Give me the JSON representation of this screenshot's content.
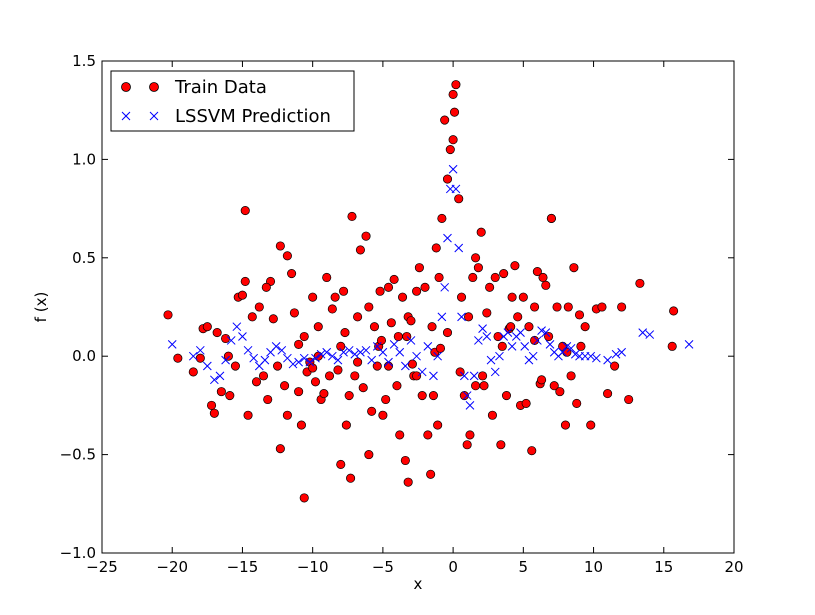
{
  "chart_data": {
    "type": "scatter",
    "title": "",
    "xlabel": "x",
    "ylabel": "f (x)",
    "xlim": [
      -25,
      20
    ],
    "ylim": [
      -1.0,
      1.5
    ],
    "grid": false,
    "legend_placement": "top-left",
    "x_ticks": [
      -25,
      -20,
      -15,
      -10,
      -5,
      0,
      5,
      10,
      15,
      20
    ],
    "x_tick_labels": [
      "−25",
      "−20",
      "−15",
      "−10",
      "−5",
      "0",
      "5",
      "10",
      "15",
      "20"
    ],
    "y_ticks": [
      -1.0,
      -0.5,
      0.0,
      0.5,
      1.0,
      1.5
    ],
    "y_tick_labels": [
      "−1.0",
      "−0.5",
      "0.0",
      "0.5",
      "1.0",
      "1.5"
    ],
    "series": [
      {
        "name": "Train Data",
        "marker": "circle",
        "color": "#ff0000",
        "edge_color": "#000000",
        "x": [
          -20.3,
          -19.6,
          -18.5,
          -18.0,
          -17.8,
          -17.5,
          -17.2,
          -17.0,
          -16.8,
          -16.5,
          -16.2,
          -15.9,
          -15.5,
          -15.3,
          -15.0,
          -14.8,
          -14.6,
          -14.3,
          -14.0,
          -13.8,
          -13.5,
          -13.2,
          -13.0,
          -12.8,
          -12.5,
          -12.3,
          -12.0,
          -11.8,
          -11.5,
          -11.3,
          -11.0,
          -10.8,
          -10.6,
          -10.4,
          -10.2,
          -10.0,
          -9.8,
          -9.6,
          -9.4,
          -9.2,
          -9.0,
          -8.8,
          -8.6,
          -8.4,
          -8.2,
          -8.0,
          -7.8,
          -7.6,
          -7.4,
          -7.2,
          -7.0,
          -6.8,
          -6.6,
          -6.4,
          -6.2,
          -6.0,
          -5.8,
          -5.6,
          -5.4,
          -5.2,
          -5.0,
          -4.8,
          -4.6,
          -4.4,
          -4.2,
          -4.0,
          -3.8,
          -3.6,
          -3.4,
          -3.2,
          -3.0,
          -2.8,
          -2.6,
          -2.4,
          -2.2,
          -2.0,
          -1.8,
          -1.6,
          -1.4,
          -1.2,
          -1.0,
          -0.8,
          -0.6,
          -0.4,
          -0.2,
          0.0,
          0.2,
          0.4,
          0.6,
          0.8,
          1.0,
          1.2,
          1.4,
          1.6,
          1.8,
          2.0,
          2.2,
          2.4,
          2.6,
          2.8,
          3.0,
          3.2,
          3.4,
          3.6,
          3.8,
          4.0,
          4.2,
          4.4,
          4.6,
          4.8,
          5.0,
          5.2,
          5.4,
          5.6,
          5.8,
          6.0,
          6.2,
          6.4,
          6.6,
          6.8,
          7.0,
          7.2,
          7.4,
          7.6,
          7.8,
          8.0,
          8.2,
          8.4,
          8.6,
          8.8,
          9.0,
          9.4,
          9.8,
          10.2,
          10.6,
          11.0,
          11.5,
          12.0,
          12.5,
          13.3,
          15.6,
          15.7,
          -14.8,
          -10.6,
          -3.2,
          -7.3,
          -6.0,
          -12.3,
          -11.8,
          0.0,
          0.1,
          7.0,
          -13.3,
          -1.1,
          -8.0,
          -3.3,
          -5.3,
          -9.6,
          -4.6,
          -2.6,
          -1.5,
          -0.4,
          0.5,
          1.1,
          2.1,
          3.5,
          5.8,
          8.1,
          -16.0,
          -11.0,
          -6.8,
          -3.9,
          -1.3,
          -10.0,
          -7.7,
          -5.1,
          -2.9,
          -0.9,
          1.6,
          4.1,
          6.3,
          9.1
        ],
        "y": [
          0.21,
          -0.01,
          -0.08,
          -0.01,
          0.14,
          0.15,
          -0.25,
          -0.29,
          0.12,
          -0.18,
          0.09,
          -0.2,
          -0.05,
          0.3,
          0.31,
          0.38,
          -0.3,
          0.2,
          -0.13,
          0.25,
          -0.1,
          -0.22,
          0.38,
          0.19,
          -0.05,
          0.56,
          -0.15,
          0.51,
          0.42,
          0.22,
          -0.18,
          -0.35,
          0.1,
          -0.08,
          -0.03,
          0.3,
          -0.13,
          0.15,
          -0.22,
          -0.19,
          0.4,
          -0.1,
          0.24,
          0.3,
          -0.07,
          0.05,
          0.33,
          -0.35,
          -0.2,
          0.71,
          -0.1,
          0.2,
          0.54,
          -0.16,
          0.61,
          0.25,
          -0.28,
          0.15,
          -0.05,
          0.33,
          -0.3,
          -0.22,
          0.35,
          0.17,
          0.39,
          -0.15,
          -0.4,
          0.3,
          -0.53,
          0.2,
          0.18,
          -0.1,
          0.33,
          0.45,
          -0.2,
          0.35,
          -0.4,
          -0.6,
          -0.2,
          0.55,
          0.4,
          0.7,
          1.2,
          0.9,
          1.05,
          1.1,
          1.38,
          0.8,
          0.3,
          -0.2,
          -0.45,
          -0.4,
          0.4,
          0.5,
          0.45,
          0.63,
          -0.15,
          0.22,
          0.35,
          -0.3,
          0.4,
          0.1,
          -0.45,
          0.42,
          -0.2,
          0.14,
          0.3,
          0.46,
          0.2,
          -0.25,
          0.3,
          -0.24,
          0.15,
          -0.48,
          0.25,
          0.43,
          -0.14,
          0.4,
          0.36,
          0.1,
          0.7,
          -0.15,
          0.25,
          -0.18,
          0.05,
          -0.35,
          0.25,
          -0.1,
          0.45,
          -0.24,
          0.21,
          0.15,
          -0.35,
          0.24,
          0.25,
          -0.19,
          -0.05,
          0.25,
          -0.22,
          0.37,
          0.05,
          0.23,
          0.74,
          -0.72,
          -0.64,
          -0.62,
          -0.5,
          -0.47,
          -0.3,
          1.33,
          1.24,
          0.7,
          0.35,
          -0.35,
          -0.55,
          0.1,
          0.05,
          0.0,
          -0.05,
          -0.1,
          0.15,
          0.12,
          -0.08,
          0.2,
          -0.1,
          0.05,
          0.08,
          0.02,
          0.0,
          0.06,
          -0.03,
          0.1,
          0.02,
          -0.06,
          0.12,
          0.08,
          -0.04,
          0.04,
          -0.15,
          0.15,
          -0.12,
          0.05
        ]
      },
      {
        "name": "LSSVM Prediction",
        "marker": "x",
        "color": "#0000ff",
        "x": [
          -20.0,
          -18.5,
          -18.0,
          -17.5,
          -17.0,
          -16.6,
          -16.2,
          -15.8,
          -15.4,
          -15.0,
          -14.6,
          -14.2,
          -13.8,
          -13.4,
          -13.0,
          -12.6,
          -12.2,
          -11.8,
          -11.4,
          -11.0,
          -10.6,
          -10.2,
          -9.8,
          -9.4,
          -9.0,
          -8.6,
          -8.2,
          -7.8,
          -7.4,
          -7.0,
          -6.6,
          -6.2,
          -5.8,
          -5.4,
          -5.0,
          -4.6,
          -4.2,
          -3.8,
          -3.4,
          -3.0,
          -2.6,
          -2.2,
          -1.8,
          -1.4,
          -1.1,
          -0.8,
          -0.6,
          -0.4,
          -0.2,
          0.0,
          0.2,
          0.4,
          0.6,
          0.8,
          1.0,
          1.2,
          1.5,
          1.8,
          2.1,
          2.4,
          2.7,
          3.0,
          3.3,
          3.6,
          3.9,
          4.2,
          4.5,
          4.8,
          5.1,
          5.4,
          5.7,
          6.0,
          6.3,
          6.6,
          6.9,
          7.2,
          7.5,
          7.8,
          8.1,
          8.4,
          8.7,
          9.0,
          9.4,
          9.8,
          10.2,
          11.0,
          11.6,
          12.0,
          13.5,
          14.0,
          16.8
        ],
        "y": [
          0.06,
          0.0,
          0.03,
          -0.05,
          -0.12,
          -0.1,
          -0.02,
          0.08,
          0.15,
          0.1,
          0.03,
          -0.01,
          -0.05,
          -0.02,
          0.02,
          0.05,
          0.03,
          -0.01,
          -0.04,
          -0.03,
          -0.01,
          -0.03,
          -0.01,
          0.01,
          0.02,
          0.0,
          -0.02,
          0.02,
          0.03,
          0.01,
          0.02,
          0.03,
          -0.02,
          0.05,
          0.02,
          -0.03,
          0.06,
          0.02,
          -0.05,
          0.08,
          0.0,
          -0.08,
          0.05,
          -0.1,
          0.0,
          0.2,
          0.35,
          0.6,
          0.85,
          0.95,
          0.85,
          0.55,
          0.2,
          -0.1,
          -0.2,
          -0.25,
          -0.1,
          0.08,
          0.14,
          0.1,
          -0.02,
          -0.08,
          0.0,
          0.1,
          0.12,
          0.05,
          0.1,
          0.12,
          0.05,
          -0.02,
          0.0,
          0.08,
          0.13,
          0.12,
          0.06,
          0.02,
          0.0,
          0.02,
          0.05,
          0.04,
          0.01,
          0.0,
          0.0,
          0.0,
          -0.01,
          -0.02,
          0.01,
          0.02,
          0.12,
          0.11,
          0.06
        ]
      }
    ]
  }
}
